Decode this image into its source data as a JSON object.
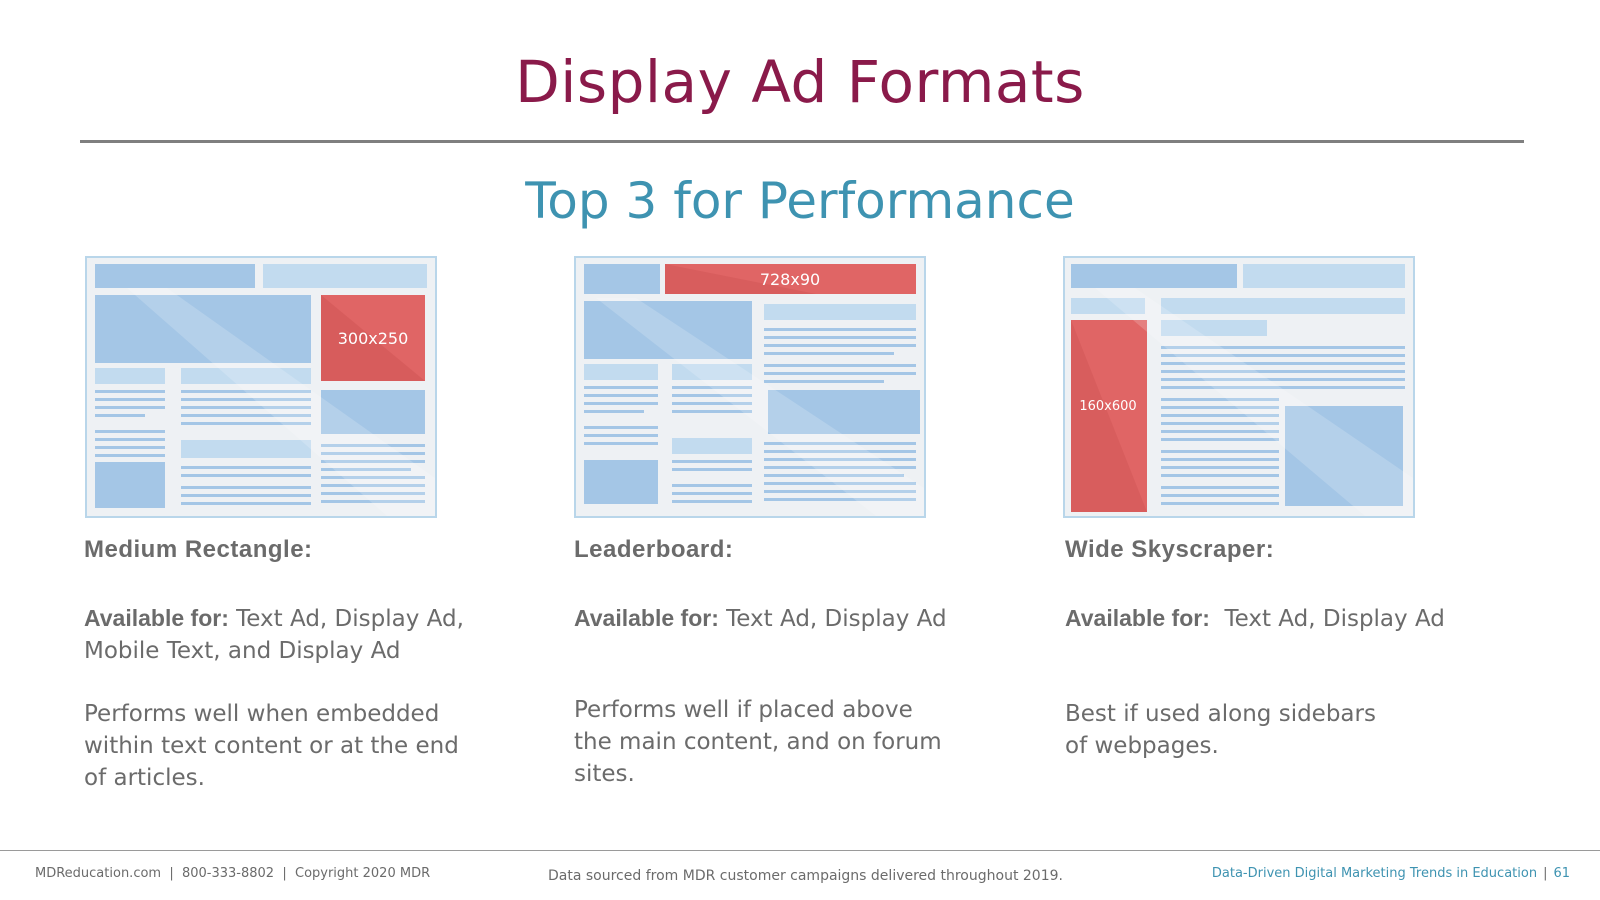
{
  "slide": {
    "title": "Display Ad Formats",
    "subtitle": "Top 3 for Performance"
  },
  "colors": {
    "title": "#8a1a4a",
    "subtitle": "#3e93b1",
    "ad_block": "#e06565",
    "content_block": "#a4c6e6",
    "text_line": "#a4c6e6",
    "text": "#6b6b6b"
  },
  "formats": [
    {
      "ad_size": "300x250",
      "name": "Medium Rectangle:",
      "available_label": "Available for:",
      "available_value": " Text Ad, Display Ad, Mobile Text, and Display Ad",
      "description": "Performs well when embedded within text content or at the end of articles."
    },
    {
      "ad_size": "728x90",
      "name": "Leaderboard:",
      "available_label": "Available for:",
      "available_value": " Text Ad, Display Ad",
      "description": "Performs well if placed above the main content, and on forum sites."
    },
    {
      "ad_size": "160x600",
      "name": "Wide Skyscraper:",
      "available_label": "Available for:",
      "available_value": "  Text Ad, Display Ad",
      "description": "Best if used along sidebars of webpages."
    }
  ],
  "footer": {
    "left": "MDReducation.com  |  800-333-8802  |  Copyright 2020 MDR",
    "center": "Data sourced from MDR customer campaigns delivered throughout 2019.",
    "right_title": "Data-Driven Digital Marketing Trends in Education",
    "separator": "|",
    "page_number": "61"
  }
}
